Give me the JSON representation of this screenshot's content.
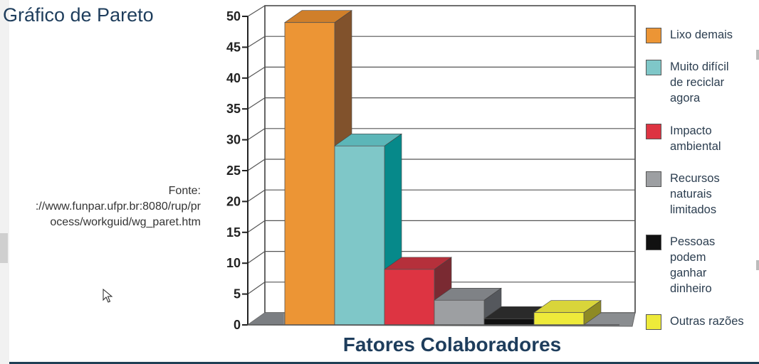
{
  "page": {
    "title": "Gráfico de Pareto",
    "source_lines": [
      "Fonte:",
      "://www.funpar.ufpr.br:8080/rup/pr",
      "ocess/workguid/wg_paret.htm"
    ]
  },
  "chart_data": {
    "type": "bar",
    "categories": [
      "Lixo demais",
      "Muito difícil de reciclar agora",
      "Impacto ambiental",
      "Recursos naturais limitados",
      "Pessoas podem ganhar dinheiro",
      "Outras razões"
    ],
    "values": [
      49,
      29,
      9,
      4,
      1,
      2
    ],
    "xlabel": "Fatores Colaboradores",
    "ylabel": "",
    "ylim": [
      0,
      50
    ],
    "yticks": [
      0,
      5,
      10,
      15,
      20,
      25,
      30,
      35,
      40,
      45,
      50
    ],
    "grid": true,
    "legend": "right",
    "colors": [
      {
        "front": "#ec9535",
        "side": "#81522c",
        "top": "#d07f2a"
      },
      {
        "front": "#7fc7c8",
        "side": "#06898a",
        "top": "#5cb6b8"
      },
      {
        "front": "#dd3442",
        "side": "#7a2a32",
        "top": "#b5303b"
      },
      {
        "front": "#9d9fa2",
        "side": "#55585d",
        "top": "#7f8286"
      },
      {
        "front": "#111111",
        "side": "#000000",
        "top": "#2a2a2a"
      },
      {
        "front": "#eeea3a",
        "side": "#8e8a24",
        "top": "#d9d53a"
      }
    ]
  },
  "legend_items": [
    {
      "lines": [
        "Lixo demais"
      ],
      "color": "#ec9535"
    },
    {
      "lines": [
        "Muito difícil",
        "de reciclar",
        "agora"
      ],
      "color": "#7fc7c8"
    },
    {
      "lines": [
        "Impacto",
        "ambiental"
      ],
      "color": "#dd3442"
    },
    {
      "lines": [
        "Recursos",
        "naturais",
        "limitados"
      ],
      "color": "#9d9fa2"
    },
    {
      "lines": [
        "Pessoas",
        "podem",
        "ganhar",
        "dinheiro"
      ],
      "color": "#111111"
    },
    {
      "lines": [
        "Outras razões"
      ],
      "color": "#eeea3a"
    }
  ]
}
